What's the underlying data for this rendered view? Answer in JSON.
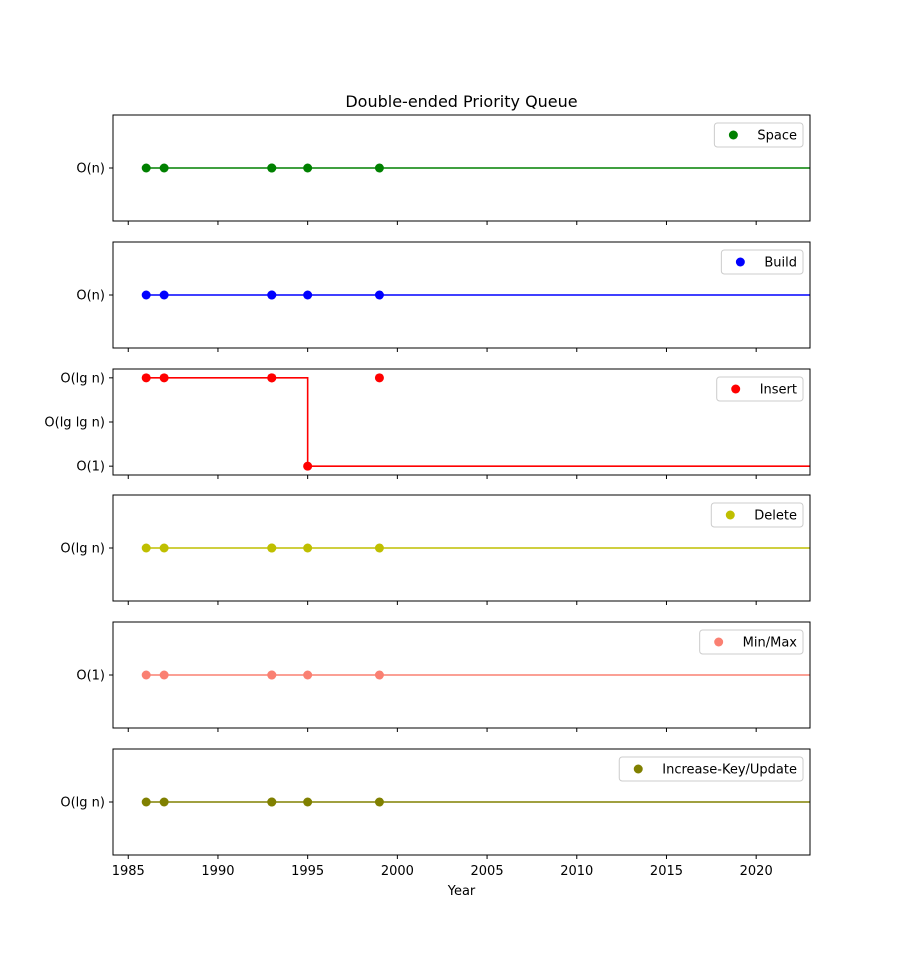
{
  "chart_data": {
    "type": "scatter",
    "title": "Double-ended Priority Queue",
    "xlabel": "Year",
    "xlim": [
      1984.15,
      2023
    ],
    "x_ticks": [
      1985,
      1990,
      1995,
      2000,
      2005,
      2010,
      2015,
      2020
    ],
    "x_tick_labels": [
      "1985",
      "1990",
      "1995",
      "2000",
      "2005",
      "2010",
      "2015",
      "2020"
    ],
    "grid": false,
    "legend_position": "upper right",
    "panels": [
      {
        "series_name": "Space",
        "color": "#008000",
        "y_levels": [
          "O(n)"
        ],
        "points": [
          {
            "x": 1986,
            "y": "O(n)"
          },
          {
            "x": 1987,
            "y": "O(n)"
          },
          {
            "x": 1993,
            "y": "O(n)"
          },
          {
            "x": 1993,
            "y": "O(n)"
          },
          {
            "x": 1995,
            "y": "O(n)"
          },
          {
            "x": 1999,
            "y": "O(n)"
          }
        ],
        "step": [
          {
            "x": 1986,
            "y": "O(n)"
          },
          {
            "x": 2023,
            "y": "O(n)"
          }
        ]
      },
      {
        "series_name": "Build",
        "color": "#0000ff",
        "y_levels": [
          "O(n)"
        ],
        "points": [
          {
            "x": 1986,
            "y": "O(n)"
          },
          {
            "x": 1987,
            "y": "O(n)"
          },
          {
            "x": 1993,
            "y": "O(n)"
          },
          {
            "x": 1993,
            "y": "O(n)"
          },
          {
            "x": 1995,
            "y": "O(n)"
          },
          {
            "x": 1999,
            "y": "O(n)"
          }
        ],
        "step": [
          {
            "x": 1986,
            "y": "O(n)"
          },
          {
            "x": 2023,
            "y": "O(n)"
          }
        ]
      },
      {
        "series_name": "Insert",
        "color": "#ff0000",
        "y_levels": [
          "O(1)",
          "O(lg lg n)",
          "O(lg n)"
        ],
        "points": [
          {
            "x": 1986,
            "y": "O(lg n)"
          },
          {
            "x": 1987,
            "y": "O(lg n)"
          },
          {
            "x": 1993,
            "y": "O(lg n)"
          },
          {
            "x": 1993,
            "y": "O(lg n)"
          },
          {
            "x": 1995,
            "y": "O(1)"
          },
          {
            "x": 1999,
            "y": "O(lg n)"
          }
        ],
        "step": [
          {
            "x": 1986,
            "y": "O(lg n)"
          },
          {
            "x": 1995,
            "y": "O(lg n)"
          },
          {
            "x": 1995,
            "y": "O(1)"
          },
          {
            "x": 2023,
            "y": "O(1)"
          }
        ]
      },
      {
        "series_name": "Delete",
        "color": "#bfbf00",
        "y_levels": [
          "O(lg n)"
        ],
        "points": [
          {
            "x": 1986,
            "y": "O(lg n)"
          },
          {
            "x": 1987,
            "y": "O(lg n)"
          },
          {
            "x": 1993,
            "y": "O(lg n)"
          },
          {
            "x": 1993,
            "y": "O(lg n)"
          },
          {
            "x": 1995,
            "y": "O(lg n)"
          },
          {
            "x": 1999,
            "y": "O(lg n)"
          }
        ],
        "step": [
          {
            "x": 1986,
            "y": "O(lg n)"
          },
          {
            "x": 2023,
            "y": "O(lg n)"
          }
        ]
      },
      {
        "series_name": "Min/Max",
        "color": "#fa8072",
        "y_levels": [
          "O(1)"
        ],
        "points": [
          {
            "x": 1986,
            "y": "O(1)"
          },
          {
            "x": 1987,
            "y": "O(1)"
          },
          {
            "x": 1993,
            "y": "O(1)"
          },
          {
            "x": 1993,
            "y": "O(1)"
          },
          {
            "x": 1995,
            "y": "O(1)"
          },
          {
            "x": 1999,
            "y": "O(1)"
          }
        ],
        "step": [
          {
            "x": 1986,
            "y": "O(1)"
          },
          {
            "x": 2023,
            "y": "O(1)"
          }
        ]
      },
      {
        "series_name": "Increase-Key/Update",
        "color": "#808000",
        "y_levels": [
          "O(lg n)"
        ],
        "points": [
          {
            "x": 1986,
            "y": "O(lg n)"
          },
          {
            "x": 1987,
            "y": "O(lg n)"
          },
          {
            "x": 1993,
            "y": "O(lg n)"
          },
          {
            "x": 1993,
            "y": "O(lg n)"
          },
          {
            "x": 1995,
            "y": "O(lg n)"
          },
          {
            "x": 1999,
            "y": "O(lg n)"
          }
        ],
        "step": [
          {
            "x": 1986,
            "y": "O(lg n)"
          },
          {
            "x": 2023,
            "y": "O(lg n)"
          }
        ]
      }
    ]
  }
}
